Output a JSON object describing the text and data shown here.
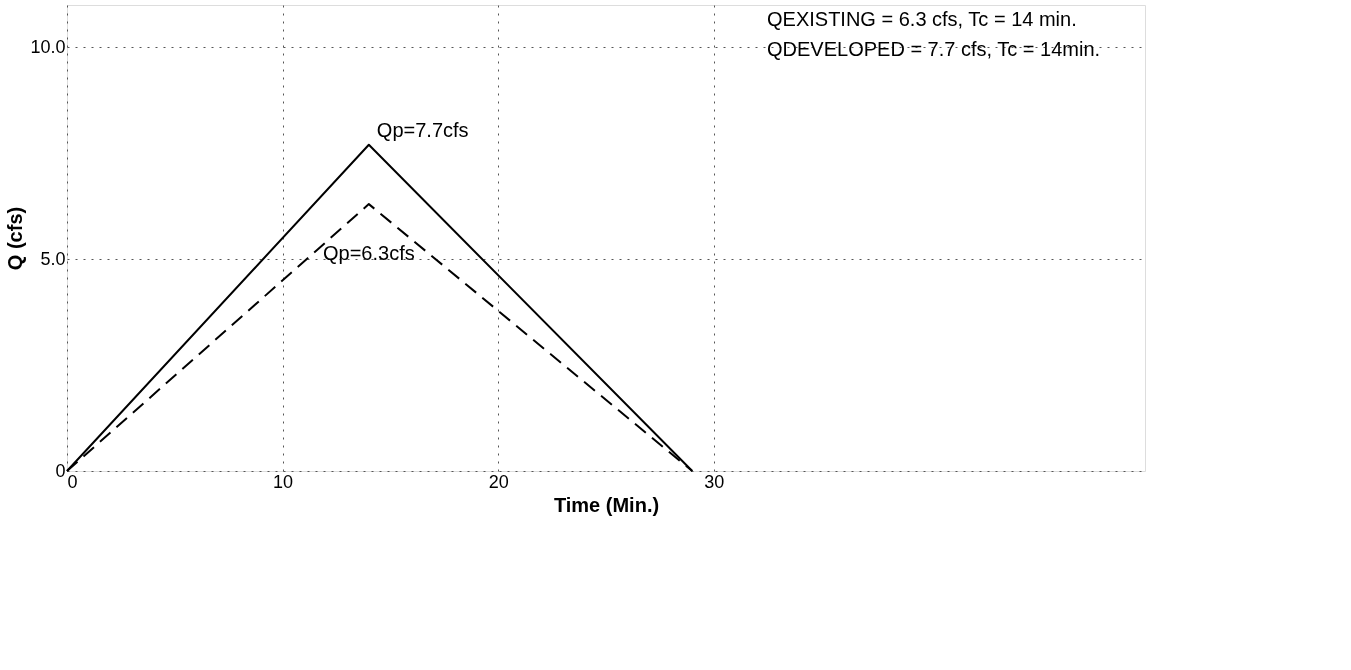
{
  "chart_data": {
    "type": "line",
    "xlabel": "Time (Min.)",
    "ylabel": "Q (cfs)",
    "xlim": [
      0,
      50
    ],
    "ylim": [
      0,
      11
    ],
    "xticks": [
      0,
      10,
      20,
      30
    ],
    "yticks": [
      {
        "value": 0,
        "label": "0"
      },
      {
        "value": 5,
        "label": "5.0"
      },
      {
        "value": 10,
        "label": "10.0"
      }
    ],
    "grid": true,
    "marker": "none",
    "series": [
      {
        "color": "#000000",
        "x": [
          0,
          14,
          29
        ],
        "values": [
          0,
          7.7,
          0
        ],
        "line_style": "solid"
      },
      {
        "color": "#000000",
        "x": [
          0,
          14,
          29
        ],
        "values": [
          0,
          6.3,
          0
        ],
        "line_style": "dashed"
      }
    ],
    "annotations": [
      {
        "text": "Qp=7.7cfs",
        "x": 14,
        "y": 7.7
      },
      {
        "text": "Qp=6.3cfs",
        "x": 14,
        "y": 6.3
      },
      "QEXISTING = 6.3 cfs, Tc = 14 min.",
      "QDEVELOPED = 7.7 cfs, Tc = 14min."
    ]
  }
}
